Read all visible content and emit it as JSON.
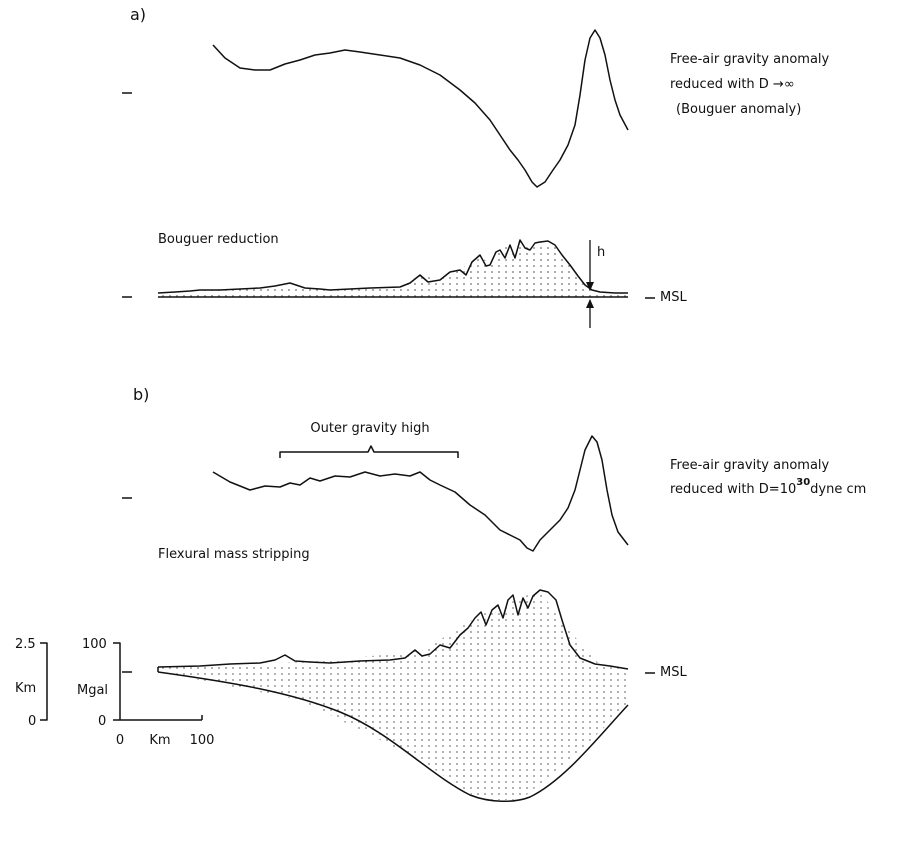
{
  "panel_a": {
    "label": "a)",
    "caption": [
      "Free-air gravity anomaly",
      "reduced with D →∞",
      "(Bouguer anomaly)"
    ],
    "reduction_label": "Bouguer reduction",
    "h_label": "h",
    "msl_label": "MSL"
  },
  "panel_b": {
    "label": "b)",
    "bracket_label": "Outer gravity high",
    "caption_line1": "Free-air gravity anomaly",
    "caption_line2": {
      "prefix": "reduced with D=10",
      "exponent": "30",
      "suffix": "dyne cm"
    },
    "reduction_label": "Flexural mass stripping",
    "msl_label": "MSL"
  },
  "scale": {
    "km_top": "2.5",
    "km_unit": "Km",
    "km_bottom": "0",
    "mgal_top": "100",
    "mgal_unit": "Mgal",
    "mgal_bottom": "0",
    "x_start": "0",
    "x_unit": "Km",
    "x_end": "100"
  }
}
